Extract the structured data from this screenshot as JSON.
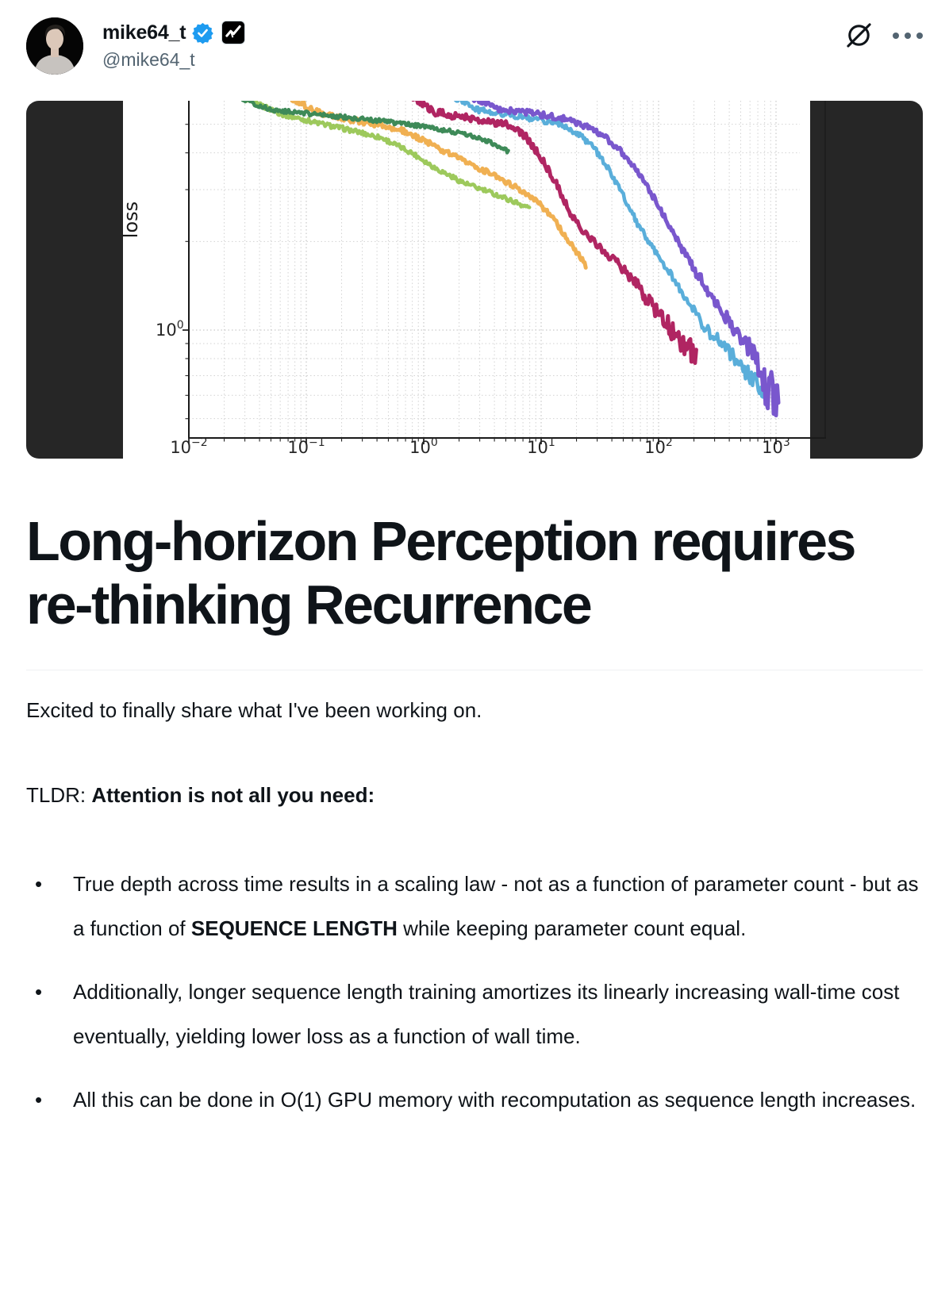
{
  "header": {
    "display_name": "mike64_t",
    "handle": "@mike64_t",
    "icons": {
      "verified": "check-seal",
      "affiliate": "chart-check-square",
      "grok": "circle-slash",
      "more": "three-dots"
    }
  },
  "article": {
    "title_lines": [
      "Long-horizon Perception requires",
      "re-thinking Recurrence"
    ],
    "intro": {
      "segments": [
        {
          "text": "Excited to finally share what I've been working on."
        }
      ]
    },
    "tldr": {
      "segments": [
        {
          "text": "TLDR: "
        },
        {
          "text": "Attention is not all you need:",
          "bold": true
        }
      ]
    },
    "bullets": [
      {
        "segments": [
          {
            "text": "True depth across time results in a scaling law - not as a function of parameter count -  but as a function of "
          },
          {
            "text": "SEQUENCE LENGTH",
            "bold": true
          },
          {
            "text": " while keeping parameter count equal."
          }
        ]
      },
      {
        "segments": [
          {
            "text": "Additionally, longer sequence length training amortizes its linearly increasing wall-time cost eventually, yielding lower loss as a function of wall time."
          }
        ]
      },
      {
        "segments": [
          {
            "text": "All this can be done in O(1) GPU memory with recomputation as sequence length increases."
          }
        ]
      }
    ],
    "bullet_marker": "•"
  },
  "chart_data": {
    "type": "line",
    "title": "",
    "xlabel": "",
    "ylabel": "loss",
    "xscale": "log",
    "yscale": "log",
    "x_tick_exponents": [
      -2,
      -1,
      0,
      1,
      2,
      3
    ],
    "y_tick_exponent": 0,
    "xlim_log10": [
      -2,
      3.3
    ],
    "ylim": [
      0.43,
      6.0
    ],
    "grid": "dotted-minor-and-major",
    "frame_color": "#262626",
    "series": [
      {
        "name": "light-green",
        "color": "#9dc95c",
        "width": 4.5,
        "noise": [
          0.008,
          0,
          9
        ],
        "points": [
          [
            -1.52,
            6.1
          ],
          [
            -1.2,
            5.4
          ],
          [
            -0.9,
            5.05
          ],
          [
            -0.6,
            4.75
          ],
          [
            -0.36,
            4.5
          ],
          [
            -0.1,
            4.0
          ],
          [
            0.1,
            3.55
          ],
          [
            0.35,
            3.15
          ],
          [
            0.6,
            2.9
          ],
          [
            0.78,
            2.72
          ],
          [
            0.9,
            2.6
          ]
        ]
      },
      {
        "name": "orange",
        "color": "#f0b052",
        "width": 5,
        "noise": [
          0.009,
          0,
          9
        ],
        "points": [
          [
            -1.12,
            6.1
          ],
          [
            -0.9,
            5.5
          ],
          [
            -0.65,
            5.2
          ],
          [
            -0.4,
            5.0
          ],
          [
            -0.15,
            4.72
          ],
          [
            0.1,
            4.2
          ],
          [
            0.35,
            3.75
          ],
          [
            0.6,
            3.35
          ],
          [
            0.85,
            2.95
          ],
          [
            1.0,
            2.65
          ],
          [
            1.12,
            2.35
          ],
          [
            1.22,
            2.05
          ],
          [
            1.3,
            1.85
          ],
          [
            1.38,
            1.65
          ]
        ]
      },
      {
        "name": "dark-green",
        "color": "#3e8a58",
        "width": 4.5,
        "noise": [
          0.007,
          0,
          9
        ],
        "points": [
          [
            -1.55,
            6.1
          ],
          [
            -1.3,
            5.6
          ],
          [
            -1.0,
            5.45
          ],
          [
            -0.7,
            5.3
          ],
          [
            -0.4,
            5.15
          ],
          [
            -0.1,
            4.98
          ],
          [
            0.15,
            4.8
          ],
          [
            0.35,
            4.62
          ],
          [
            0.55,
            4.38
          ],
          [
            0.72,
            4.05
          ]
        ]
      },
      {
        "name": "crimson",
        "color": "#b02562",
        "width": 5,
        "noise": [
          0.012,
          0.05,
          1.55
        ],
        "points": [
          [
            -0.1,
            6.2
          ],
          [
            0.1,
            5.5
          ],
          [
            0.3,
            5.32
          ],
          [
            0.55,
            5.12
          ],
          [
            0.76,
            4.95
          ],
          [
            0.88,
            4.5
          ],
          [
            1.0,
            3.85
          ],
          [
            1.12,
            3.2
          ],
          [
            1.26,
            2.45
          ],
          [
            1.39,
            2.1
          ],
          [
            1.52,
            1.88
          ],
          [
            1.65,
            1.68
          ],
          [
            1.8,
            1.45
          ],
          [
            1.95,
            1.22
          ],
          [
            2.1,
            1.0
          ],
          [
            2.22,
            0.88
          ],
          [
            2.32,
            0.8
          ]
        ]
      },
      {
        "name": "blue",
        "color": "#5aaeda",
        "width": 4.5,
        "noise": [
          0.01,
          0.025,
          2.0
        ],
        "points": [
          [
            0.25,
            6.2
          ],
          [
            0.45,
            5.6
          ],
          [
            0.65,
            5.45
          ],
          [
            0.85,
            5.3
          ],
          [
            1.05,
            5.12
          ],
          [
            1.2,
            4.95
          ],
          [
            1.33,
            4.6
          ],
          [
            1.45,
            4.15
          ],
          [
            1.58,
            3.5
          ],
          [
            1.7,
            2.85
          ],
          [
            1.82,
            2.3
          ],
          [
            1.95,
            1.9
          ],
          [
            2.1,
            1.55
          ],
          [
            2.25,
            1.25
          ],
          [
            2.4,
            1.02
          ],
          [
            2.55,
            0.88
          ],
          [
            2.7,
            0.76
          ],
          [
            2.85,
            0.65
          ],
          [
            2.93,
            0.58
          ]
        ]
      },
      {
        "name": "purple",
        "color": "#7957cd",
        "width": 5,
        "noise": [
          0.01,
          0.035,
          2.1,
          2.88
        ],
        "points": [
          [
            0.4,
            6.2
          ],
          [
            0.62,
            5.65
          ],
          [
            0.85,
            5.5
          ],
          [
            1.1,
            5.32
          ],
          [
            1.25,
            5.15
          ],
          [
            1.38,
            4.92
          ],
          [
            1.52,
            4.6
          ],
          [
            1.65,
            4.15
          ],
          [
            1.78,
            3.65
          ],
          [
            1.9,
            3.1
          ],
          [
            2.02,
            2.55
          ],
          [
            2.15,
            2.05
          ],
          [
            2.3,
            1.62
          ],
          [
            2.45,
            1.3
          ],
          [
            2.6,
            1.08
          ],
          [
            2.75,
            0.9
          ],
          [
            2.87,
            0.74
          ],
          [
            2.97,
            0.58
          ],
          [
            3.02,
            0.52
          ]
        ]
      }
    ]
  }
}
